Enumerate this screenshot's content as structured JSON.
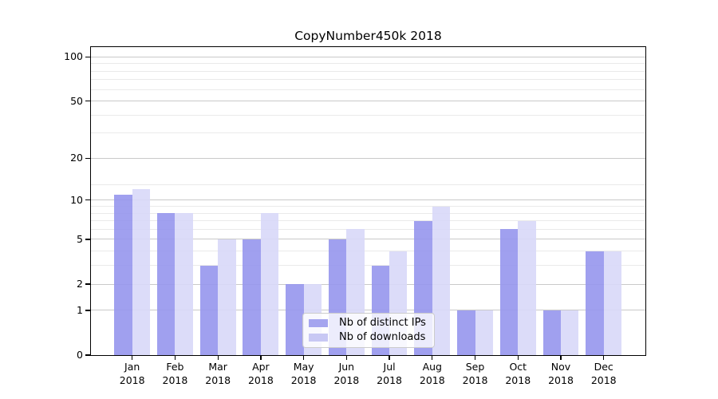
{
  "chart_data": {
    "type": "bar",
    "title": "CopyNumber450k 2018",
    "categories": [
      "Jan",
      "Feb",
      "Mar",
      "Apr",
      "May",
      "Jun",
      "Jul",
      "Aug",
      "Sep",
      "Oct",
      "Nov",
      "Dec"
    ],
    "category_year": "2018",
    "series": [
      {
        "name": "Nb of distinct IPs",
        "values": [
          11,
          8,
          3,
          5,
          2,
          5,
          3,
          7,
          1,
          6,
          1,
          4
        ]
      },
      {
        "name": "Nb of downloads",
        "values": [
          12,
          8,
          5,
          8,
          2,
          6,
          4,
          9,
          1,
          7,
          1,
          4
        ]
      }
    ],
    "xlabel": "",
    "ylabel": "",
    "y_scale": "log10(1+v)",
    "y_major_ticks": [
      100,
      50,
      20,
      10,
      5,
      2,
      1,
      0
    ],
    "y_minor_gridlines": [
      3,
      4,
      6,
      7,
      8,
      9,
      13,
      30,
      40,
      60,
      70,
      80,
      90
    ],
    "ylim": [
      0,
      111
    ],
    "grid": true,
    "legend_position": "lower center",
    "colors": {
      "bar_distinct_ips": "rgba(150,150,237,0.9)",
      "bar_downloads": "rgba(216,216,248,0.9)",
      "legend_swatch_distinct_ips": "#a5a5ef",
      "legend_swatch_downloads": "#c8c8f4",
      "major_grid": "#c9c9c9",
      "minor_grid": "#eaeaea",
      "spine": "#000000"
    }
  }
}
